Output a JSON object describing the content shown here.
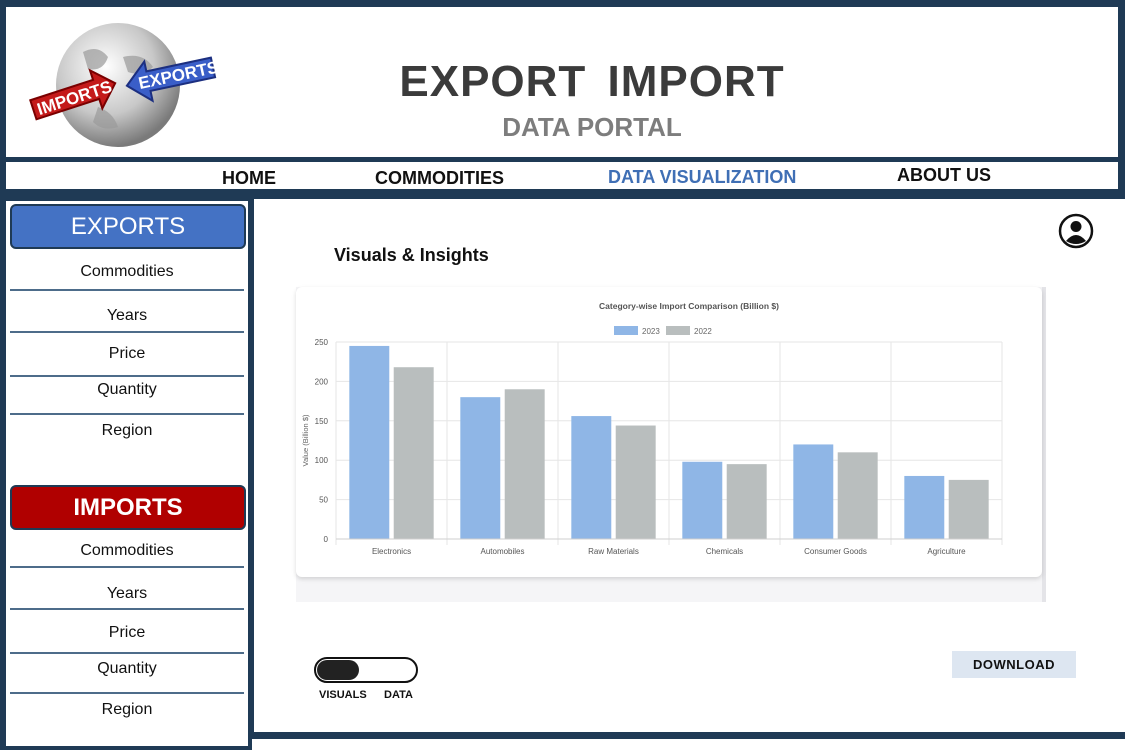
{
  "header": {
    "logo": {
      "left_text": "IMPORTS",
      "right_text": "EXPORTS"
    },
    "title": "EXPORT IMPORT",
    "subtitle": "DATA PORTAL"
  },
  "nav": {
    "items": [
      {
        "label": "HOME",
        "active": false
      },
      {
        "label": "COMMODITIES",
        "active": false
      },
      {
        "label": "DATA VISUALIZATION",
        "active": true
      },
      {
        "label": "ABOUT US",
        "active": false
      }
    ]
  },
  "sidebar": {
    "exports": {
      "title": "EXPORTS",
      "items": [
        "Commodities",
        "Years",
        "Price",
        "Quantity",
        "Region"
      ]
    },
    "imports": {
      "title": "IMPORTS",
      "items": [
        "Commodities",
        "Years",
        "Price",
        "Quantity",
        "Region"
      ]
    }
  },
  "main": {
    "title": "Visuals & Insights",
    "toggle": {
      "left_label": "VISUALS",
      "right_label": "DATA",
      "selected": "VISUALS"
    },
    "download_label": "DOWNLOAD"
  },
  "colors": {
    "series_2023": "#8fb6e6",
    "series_2022": "#b9bebe",
    "export_button": "#4472c4",
    "import_button": "#b00000",
    "active_nav": "#3f6fb5"
  },
  "chart_data": {
    "type": "bar",
    "title": "Category-wise Import Comparison (Billion $)",
    "xlabel": "",
    "ylabel": "Value (Billion $)",
    "ylim": [
      0,
      250
    ],
    "yticks": [
      0,
      50,
      100,
      150,
      200,
      250
    ],
    "grid": true,
    "legend_position": "top-center",
    "categories": [
      "Electronics",
      "Automobiles",
      "Raw Materials",
      "Chemicals",
      "Consumer Goods",
      "Agriculture"
    ],
    "series": [
      {
        "name": "2023",
        "values": [
          245,
          180,
          156,
          98,
          120,
          80
        ]
      },
      {
        "name": "2022",
        "values": [
          218,
          190,
          144,
          95,
          110,
          75
        ]
      }
    ]
  }
}
